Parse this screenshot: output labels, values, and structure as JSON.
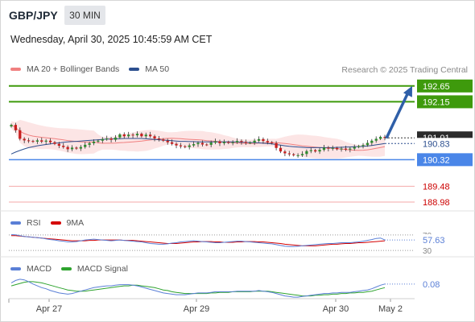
{
  "header": {
    "symbol": "GBP/JPY",
    "interval": "30 MIN",
    "datetime": "Wednesday, April 30, 2025 10:45:59 AM CET",
    "copyright": "Research © 2025 Trading Central"
  },
  "legends": {
    "main": [
      {
        "label": "MA 20 + Bollinger Bands",
        "color": "#f08080"
      },
      {
        "label": "MA 50",
        "color": "#2c4f8f"
      }
    ],
    "rsi": [
      {
        "label": "RSI",
        "color": "#5a7fd6"
      },
      {
        "label": "9MA",
        "color": "#d40000"
      }
    ],
    "macd": [
      {
        "label": "MACD",
        "color": "#5a7fd6"
      },
      {
        "label": "MACD Signal",
        "color": "#2ea32e"
      }
    ]
  },
  "chart_data": [
    {
      "type": "candlestick",
      "x_ticks": [
        "Apr 27",
        "Apr 29",
        "Apr 30",
        "May 2"
      ],
      "ylim": [
        188.7,
        192.95
      ],
      "levels": [
        {
          "value": 192.65,
          "label": "192.65",
          "color": "#3e9a0c",
          "kind": "resistance"
        },
        {
          "value": 192.15,
          "label": "192.15",
          "color": "#3e9a0c",
          "kind": "resistance"
        },
        {
          "value": 190.32,
          "label": "190.32",
          "color": "#4a86e8",
          "kind": "pivot"
        },
        {
          "value": 189.48,
          "label": "189.48",
          "color": "#cc0000",
          "kind": "support"
        },
        {
          "value": 188.98,
          "label": "188.98",
          "color": "#cc0000",
          "kind": "support"
        }
      ],
      "last_price": {
        "value": 191.01,
        "label": "191.01"
      },
      "ma50_last": {
        "value": 190.83,
        "label": "190.83"
      },
      "target_arrow": {
        "from": 191.0,
        "to": 192.65
      },
      "closes": [
        191.42,
        191.25,
        190.98,
        190.93,
        190.91,
        190.89,
        190.93,
        190.89,
        190.92,
        190.87,
        190.82,
        190.76,
        190.72,
        190.65,
        190.7,
        190.67,
        190.72,
        190.79,
        190.84,
        190.89,
        190.92,
        190.97,
        190.99,
        190.95,
        191.02,
        191.12,
        191.06,
        191.11,
        191.09,
        191.14,
        191.06,
        191.11,
        191.06,
        190.99,
        190.96,
        190.92,
        190.87,
        190.82,
        190.77,
        190.74,
        190.72,
        190.77,
        190.81,
        190.85,
        190.8,
        190.79,
        190.86,
        190.9,
        190.84,
        190.88,
        190.85,
        190.87,
        190.91,
        190.88,
        190.85,
        190.86,
        190.92,
        190.97,
        190.91,
        190.87,
        190.84,
        190.69,
        190.58,
        190.52,
        190.49,
        190.46,
        190.46,
        190.5,
        190.59,
        190.62,
        190.58,
        190.63,
        190.7,
        190.67,
        190.69,
        190.65,
        190.67,
        190.64,
        190.67,
        190.72,
        190.75,
        190.78,
        190.85,
        190.92,
        190.98,
        191.04,
        191.01
      ],
      "ma50": [
        190.5,
        190.56,
        190.61,
        190.66,
        190.7,
        190.73,
        190.76,
        190.78,
        190.8,
        190.82,
        190.84,
        190.85,
        190.87,
        190.88,
        190.89,
        190.9,
        190.91,
        190.92,
        190.93,
        190.94,
        190.95,
        190.96,
        190.97,
        190.97,
        190.98,
        190.98,
        190.99,
        190.99,
        190.99,
        190.99,
        190.99,
        190.98,
        190.97,
        190.96,
        190.95,
        190.94,
        190.93,
        190.92,
        190.91,
        190.9,
        190.9,
        190.89,
        190.89,
        190.88,
        190.88,
        190.88,
        190.88,
        190.88,
        190.88,
        190.88,
        190.88,
        190.88,
        190.88,
        190.87,
        190.87,
        190.86,
        190.86,
        190.85,
        190.84,
        190.83,
        190.82,
        190.8,
        190.78,
        190.76,
        190.74,
        190.73,
        190.72,
        190.71,
        190.7,
        190.7,
        190.7,
        190.7,
        190.7,
        190.7,
        190.7,
        190.71,
        190.71,
        190.72,
        190.72,
        190.73,
        190.73,
        190.74,
        190.75,
        190.77,
        190.79,
        190.81,
        190.83
      ]
    },
    {
      "type": "line",
      "name": "RSI",
      "reference_lines": [
        {
          "value": 70,
          "label": "70"
        },
        {
          "value": 30,
          "label": "30"
        }
      ],
      "last_label": "57.63",
      "rsi": [
        71,
        70,
        68,
        66,
        65,
        64,
        63,
        62,
        60,
        58,
        57,
        55,
        54,
        52,
        52,
        53,
        55,
        57,
        58,
        59,
        58,
        57,
        56,
        55,
        56,
        57,
        56,
        55,
        54,
        53,
        52,
        50,
        48,
        47,
        46,
        46,
        47,
        49,
        50,
        52,
        53,
        54,
        55,
        54,
        53,
        52,
        51,
        50,
        50,
        51,
        52,
        53,
        54,
        54,
        53,
        52,
        51,
        50,
        49,
        48,
        47,
        45,
        43,
        41,
        40,
        40,
        41,
        42,
        43,
        44,
        45,
        46,
        47,
        48,
        48,
        49,
        50,
        50,
        50,
        51,
        52,
        54,
        56,
        58,
        61,
        62,
        57
      ],
      "ma9": [
        68,
        68,
        67,
        66,
        65,
        64,
        63,
        62,
        61,
        60,
        59,
        58,
        57,
        56,
        55,
        55,
        55,
        55,
        56,
        56,
        57,
        57,
        57,
        57,
        57,
        57,
        56,
        56,
        56,
        55,
        54,
        53,
        52,
        51,
        50,
        49,
        48,
        48,
        48,
        49,
        50,
        51,
        52,
        52,
        53,
        53,
        53,
        52,
        52,
        51,
        51,
        51,
        52,
        52,
        53,
        53,
        53,
        52,
        52,
        51,
        50,
        49,
        48,
        46,
        45,
        44,
        43,
        42,
        42,
        42,
        42,
        43,
        44,
        45,
        46,
        46,
        47,
        48,
        48,
        49,
        50,
        50,
        51,
        52,
        53,
        54,
        55
      ]
    },
    {
      "type": "line",
      "name": "MACD",
      "last_label": "0.08",
      "macd": [
        0.1,
        0.14,
        0.16,
        0.15,
        0.12,
        0.08,
        0.05,
        0.02,
        0.0,
        -0.03,
        -0.05,
        -0.07,
        -0.08,
        -0.09,
        -0.08,
        -0.06,
        -0.04,
        -0.02,
        0.0,
        0.02,
        0.03,
        0.04,
        0.05,
        0.05,
        0.06,
        0.07,
        0.07,
        0.07,
        0.06,
        0.05,
        0.03,
        0.01,
        -0.01,
        -0.03,
        -0.05,
        -0.07,
        -0.08,
        -0.09,
        -0.1,
        -0.1,
        -0.1,
        -0.09,
        -0.08,
        -0.07,
        -0.07,
        -0.07,
        -0.06,
        -0.05,
        -0.05,
        -0.05,
        -0.05,
        -0.05,
        -0.04,
        -0.04,
        -0.04,
        -0.04,
        -0.04,
        -0.03,
        -0.04,
        -0.05,
        -0.06,
        -0.08,
        -0.1,
        -0.12,
        -0.13,
        -0.14,
        -0.14,
        -0.13,
        -0.12,
        -0.11,
        -0.1,
        -0.09,
        -0.08,
        -0.08,
        -0.07,
        -0.07,
        -0.06,
        -0.06,
        -0.06,
        -0.05,
        -0.04,
        -0.03,
        -0.02,
        0.0,
        0.03,
        0.06,
        0.08
      ],
      "signal": [
        0.05,
        0.07,
        0.09,
        0.11,
        0.12,
        0.12,
        0.11,
        0.1,
        0.08,
        0.06,
        0.04,
        0.02,
        0.0,
        -0.02,
        -0.03,
        -0.04,
        -0.04,
        -0.04,
        -0.03,
        -0.02,
        -0.01,
        0.0,
        0.01,
        0.02,
        0.03,
        0.04,
        0.05,
        0.05,
        0.06,
        0.06,
        0.05,
        0.04,
        0.03,
        0.02,
        0.0,
        -0.02,
        -0.03,
        -0.05,
        -0.06,
        -0.07,
        -0.08,
        -0.08,
        -0.08,
        -0.08,
        -0.08,
        -0.08,
        -0.07,
        -0.07,
        -0.06,
        -0.06,
        -0.06,
        -0.05,
        -0.05,
        -0.05,
        -0.05,
        -0.05,
        -0.04,
        -0.04,
        -0.04,
        -0.04,
        -0.05,
        -0.06,
        -0.07,
        -0.08,
        -0.09,
        -0.1,
        -0.11,
        -0.12,
        -0.12,
        -0.12,
        -0.11,
        -0.11,
        -0.1,
        -0.1,
        -0.09,
        -0.09,
        -0.08,
        -0.08,
        -0.07,
        -0.07,
        -0.06,
        -0.06,
        -0.05,
        -0.04,
        -0.02,
        0.0,
        0.02
      ]
    }
  ]
}
